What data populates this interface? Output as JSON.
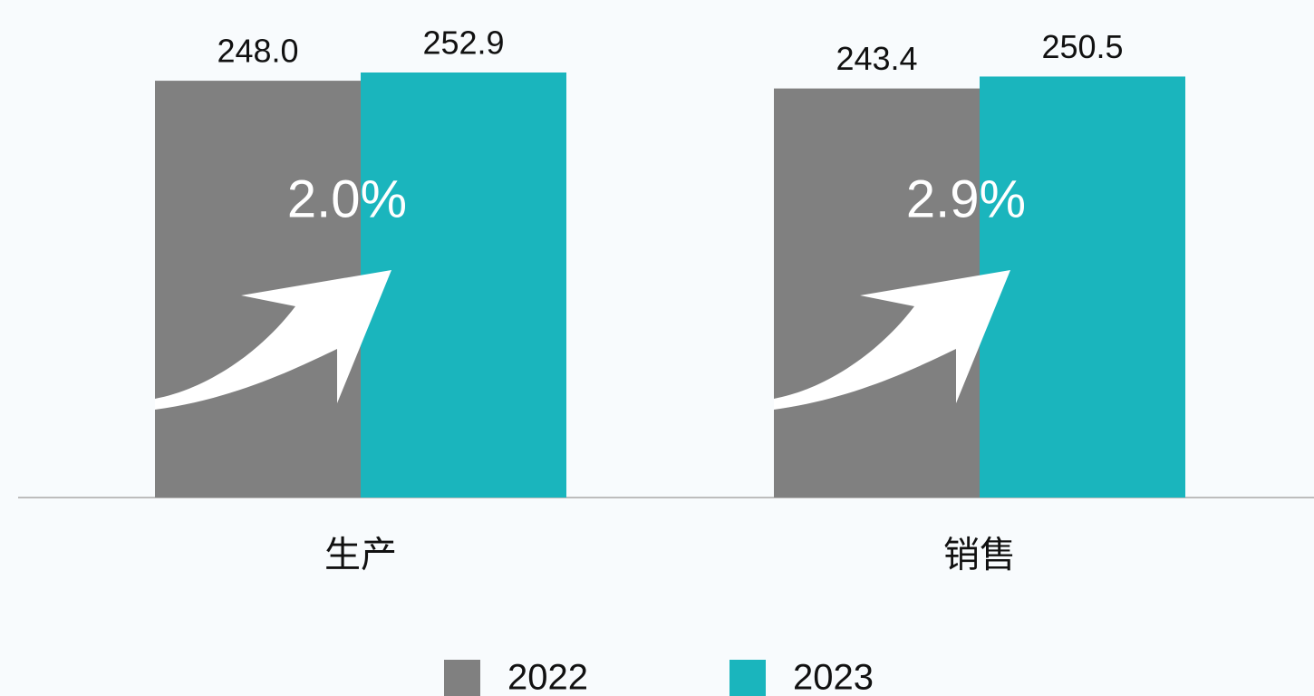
{
  "chart_data": {
    "type": "bar",
    "categories": [
      "生产",
      "销售"
    ],
    "series": [
      {
        "name": "2022",
        "color": "#808080",
        "values": [
          248.0,
          243.4
        ],
        "value_labels": [
          "248.0",
          "243.4"
        ]
      },
      {
        "name": "2023",
        "color": "#1ab5bd",
        "values": [
          252.9,
          250.5
        ],
        "value_labels": [
          "252.9",
          "250.5"
        ]
      }
    ],
    "annotations": [
      "2.0%",
      "2.9%"
    ]
  }
}
